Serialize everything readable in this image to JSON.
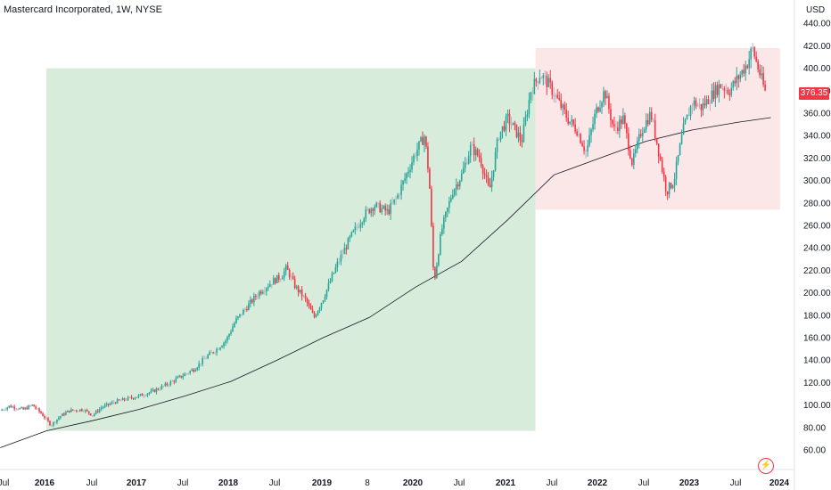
{
  "header": {
    "title": "Mastercard Incorporated, 1W, NYSE",
    "currency": "USD",
    "last_price": "376.35"
  },
  "icons": {
    "alert": "lightning-bolt-icon"
  },
  "colors": {
    "up": "#26a69a",
    "down": "#f23645",
    "neutral": "#b2b5be",
    "ma": "#131722",
    "zone_green": "#d8ecdb",
    "zone_red": "#fbe7e8"
  },
  "chart_data": {
    "type": "candlestick",
    "title": "Mastercard Incorporated, 1W, NYSE",
    "xlabel": "",
    "ylabel": "USD",
    "ylim": [
      52,
      446
    ],
    "x_ticks": [
      "Jul",
      "2016",
      "Jul",
      "2017",
      "Jul",
      "2018",
      "Jul",
      "2019",
      "8",
      "2020",
      "Jul",
      "2021",
      "Jul",
      "2022",
      "Jul",
      "2023",
      "Jul",
      "2024"
    ],
    "y_ticks": [
      60,
      80,
      100,
      120,
      140,
      160,
      180,
      200,
      220,
      240,
      260,
      280,
      300,
      320,
      340,
      360,
      380,
      400,
      420,
      440
    ],
    "last_price": 376.35,
    "zones": [
      {
        "color": "green",
        "x_start": 2016.0,
        "x_end": 2021.3,
        "y_low": 77,
        "y_high": 400
      },
      {
        "color": "red",
        "x_start": 2021.3,
        "x_end": 2023.95,
        "y_low": 274,
        "y_high": 418
      }
    ],
    "price_path": [
      [
        2015.5,
        95
      ],
      [
        2015.6,
        99
      ],
      [
        2015.75,
        96
      ],
      [
        2015.85,
        100
      ],
      [
        2015.95,
        92
      ],
      [
        2016.05,
        82
      ],
      [
        2016.15,
        90
      ],
      [
        2016.25,
        95
      ],
      [
        2016.4,
        96
      ],
      [
        2016.5,
        91
      ],
      [
        2016.6,
        98
      ],
      [
        2016.75,
        103
      ],
      [
        2016.9,
        106
      ],
      [
        2017.0,
        108
      ],
      [
        2017.15,
        112
      ],
      [
        2017.3,
        118
      ],
      [
        2017.45,
        125
      ],
      [
        2017.6,
        132
      ],
      [
        2017.75,
        144
      ],
      [
        2017.85,
        150
      ],
      [
        2017.95,
        158
      ],
      [
        2018.05,
        175
      ],
      [
        2018.15,
        185
      ],
      [
        2018.3,
        200
      ],
      [
        2018.45,
        210
      ],
      [
        2018.55,
        215
      ],
      [
        2018.6,
        222
      ],
      [
        2018.7,
        205
      ],
      [
        2018.8,
        195
      ],
      [
        2018.9,
        178
      ],
      [
        2019.0,
        195
      ],
      [
        2019.15,
        225
      ],
      [
        2019.3,
        250
      ],
      [
        2019.45,
        270
      ],
      [
        2019.55,
        278
      ],
      [
        2019.7,
        272
      ],
      [
        2019.8,
        285
      ],
      [
        2019.9,
        305
      ],
      [
        2020.0,
        325
      ],
      [
        2020.1,
        340
      ],
      [
        2020.15,
        300
      ],
      [
        2020.2,
        208
      ],
      [
        2020.28,
        255
      ],
      [
        2020.4,
        290
      ],
      [
        2020.5,
        305
      ],
      [
        2020.6,
        330
      ],
      [
        2020.7,
        320
      ],
      [
        2020.8,
        290
      ],
      [
        2020.9,
        340
      ],
      [
        2021.0,
        355
      ],
      [
        2021.08,
        345
      ],
      [
        2021.15,
        335
      ],
      [
        2021.25,
        380
      ],
      [
        2021.35,
        395
      ],
      [
        2021.45,
        385
      ],
      [
        2021.55,
        370
      ],
      [
        2021.65,
        355
      ],
      [
        2021.75,
        345
      ],
      [
        2021.85,
        325
      ],
      [
        2021.95,
        360
      ],
      [
        2022.05,
        380
      ],
      [
        2022.15,
        345
      ],
      [
        2022.25,
        355
      ],
      [
        2022.35,
        315
      ],
      [
        2022.45,
        345
      ],
      [
        2022.55,
        360
      ],
      [
        2022.65,
        320
      ],
      [
        2022.72,
        290
      ],
      [
        2022.8,
        300
      ],
      [
        2022.9,
        345
      ],
      [
        2023.0,
        370
      ],
      [
        2023.1,
        365
      ],
      [
        2023.2,
        375
      ],
      [
        2023.3,
        385
      ],
      [
        2023.4,
        380
      ],
      [
        2023.5,
        392
      ],
      [
        2023.6,
        405
      ],
      [
        2023.65,
        418
      ],
      [
        2023.72,
        398
      ],
      [
        2023.8,
        376
      ]
    ],
    "moving_average": [
      [
        2015.5,
        62
      ],
      [
        2016.0,
        77
      ],
      [
        2016.5,
        86
      ],
      [
        2017.0,
        96
      ],
      [
        2017.5,
        108
      ],
      [
        2018.0,
        121
      ],
      [
        2018.5,
        140
      ],
      [
        2019.0,
        160
      ],
      [
        2019.5,
        178
      ],
      [
        2020.0,
        205
      ],
      [
        2020.5,
        228
      ],
      [
        2021.0,
        265
      ],
      [
        2021.5,
        305
      ],
      [
        2022.0,
        320
      ],
      [
        2022.5,
        335
      ],
      [
        2023.0,
        345
      ],
      [
        2023.5,
        352
      ],
      [
        2023.85,
        356
      ]
    ]
  }
}
